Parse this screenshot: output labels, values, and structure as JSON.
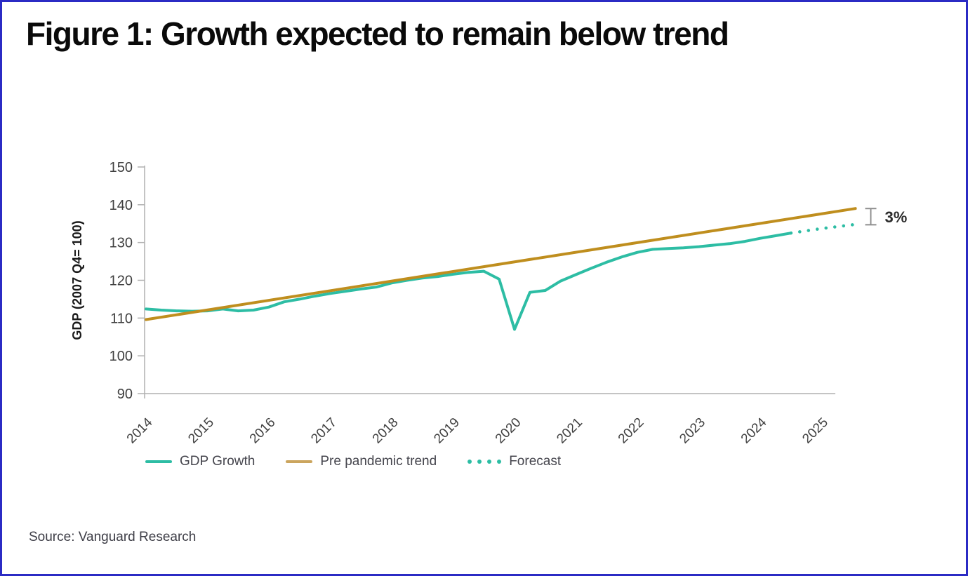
{
  "page": {
    "title": "Figure 1: Growth expected to remain below trend",
    "source": "Source: Vanguard Research",
    "border_color": "#2B2BC4"
  },
  "legend": {
    "items": [
      {
        "label": "GDP Growth",
        "color": "#2DBDA4",
        "style": "solid"
      },
      {
        "label": "Pre pandemic trend",
        "color": "#CBA55E",
        "style": "solid"
      },
      {
        "label": "Forecast",
        "color": "#2DBDA4",
        "style": "dotted"
      }
    ]
  },
  "chart_data": {
    "type": "line",
    "title": "Figure 1: Growth expected to remain below trend",
    "xlabel": "",
    "ylabel": "GDP (2007 Q4= 100)",
    "ylim": [
      90,
      150
    ],
    "yticks": [
      90,
      100,
      110,
      120,
      130,
      140,
      150
    ],
    "xticks": [
      2014,
      2015,
      2016,
      2017,
      2018,
      2019,
      2020,
      2021,
      2022,
      2023,
      2024,
      2025
    ],
    "grid": false,
    "legend_position": "bottom",
    "colors": {
      "gdp_growth": "#2DBDA4",
      "trend": "#BF8E1E",
      "forecast": "#2DBDA4",
      "axis": "#B0B0B0",
      "tick_text": "#404040",
      "bracket": "#8E8E8E"
    },
    "series": [
      {
        "name": "GDP Growth",
        "color": "#2DBDA4",
        "style": "solid",
        "x": [
          2014.0,
          2014.25,
          2014.5,
          2014.75,
          2015.0,
          2015.25,
          2015.5,
          2015.75,
          2016.0,
          2016.25,
          2016.5,
          2016.75,
          2017.0,
          2017.25,
          2017.5,
          2017.75,
          2018.0,
          2018.25,
          2018.5,
          2018.75,
          2019.0,
          2019.25,
          2019.5,
          2019.75,
          2020.0,
          2020.25,
          2020.5,
          2020.75,
          2021.0,
          2021.25,
          2021.5,
          2021.75,
          2022.0,
          2022.25,
          2022.5,
          2022.75,
          2023.0,
          2023.25,
          2023.5,
          2023.75,
          2024.0,
          2024.25,
          2024.5
        ],
        "y": [
          112.4,
          112.1,
          111.9,
          111.8,
          111.9,
          112.4,
          111.9,
          112.1,
          112.9,
          114.3,
          115.0,
          115.8,
          116.5,
          117.1,
          117.7,
          118.2,
          119.3,
          120.0,
          120.6,
          121.0,
          121.6,
          122.1,
          122.4,
          120.3,
          107.0,
          116.8,
          117.3,
          119.8,
          121.5,
          123.2,
          124.8,
          126.2,
          127.4,
          128.2,
          128.4,
          128.6,
          128.9,
          129.3,
          129.7,
          130.3,
          131.1,
          131.8,
          132.5
        ]
      },
      {
        "name": "Pre pandemic trend",
        "color": "#BF8E1E",
        "style": "solid",
        "x": [
          2014.0,
          2025.55
        ],
        "y": [
          109.6,
          139.0
        ]
      },
      {
        "name": "Forecast",
        "color": "#2DBDA4",
        "style": "dotted",
        "x": [
          2024.5,
          2024.75,
          2025.0,
          2025.25,
          2025.5
        ],
        "y": [
          132.5,
          133.1,
          133.7,
          134.2,
          134.7
        ]
      }
    ],
    "annotation": {
      "label": "3%",
      "x": 2025.8,
      "from": 139.0,
      "to": 134.7
    }
  }
}
